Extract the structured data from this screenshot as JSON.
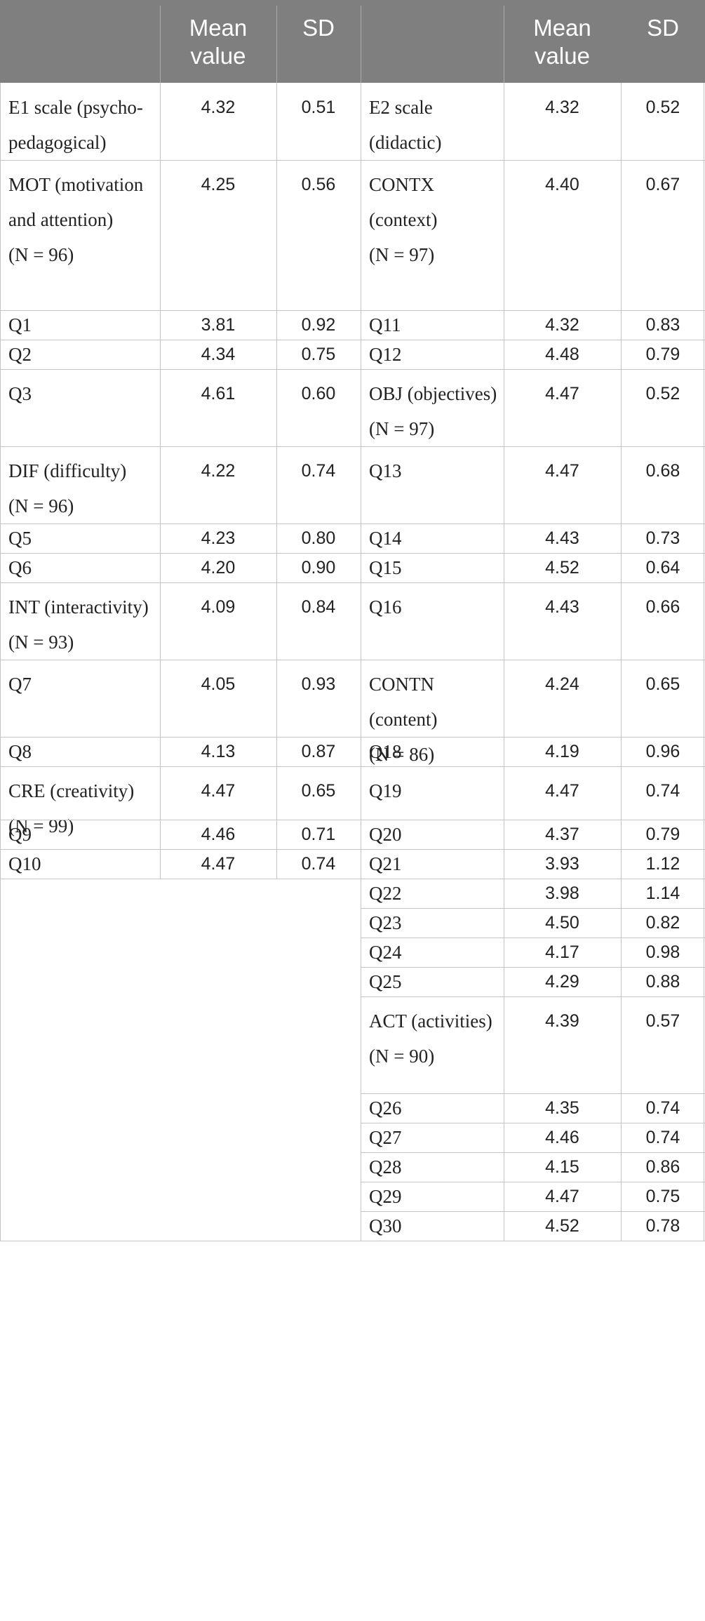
{
  "table": {
    "headers": [
      "",
      "Mean value",
      "SD",
      "",
      "Mean value",
      "SD"
    ],
    "left_rows": [
      {
        "label": "E1 scale (psycho-pedagogical)",
        "mean": "4.32",
        "sd": "0.51"
      },
      {
        "label": "MOT (motivation and attention)",
        "n": "(N = 96)",
        "mean": "4.25",
        "sd": "0.56"
      },
      {
        "label": "Q1",
        "mean": "3.81",
        "sd": "0.92"
      },
      {
        "label": "Q2",
        "mean": "4.34",
        "sd": "0.75"
      },
      {
        "label": "Q3",
        "mean": "4.61",
        "sd": "0.60"
      },
      {
        "label": "DIF (difficulty)",
        "n": "(N = 96)",
        "mean": "4.22",
        "sd": "0.74"
      },
      {
        "label": "Q5",
        "mean": "4.23",
        "sd": "0.80"
      },
      {
        "label": "Q6",
        "mean": "4.20",
        "sd": "0.90"
      },
      {
        "label": "INT (interactivity)",
        "n": "(N = 93)",
        "mean": "4.09",
        "sd": "0.84"
      },
      {
        "label": "Q7",
        "mean": "4.05",
        "sd": "0.93"
      },
      {
        "label": "Q8",
        "mean": "4.13",
        "sd": "0.87"
      },
      {
        "label": "CRE (creativity)",
        "n": "(N = 99)",
        "mean": "4.47",
        "sd": "0.65"
      },
      {
        "label": "Q9",
        "mean": "4.46",
        "sd": "0.71"
      },
      {
        "label": "Q10",
        "mean": "4.47",
        "sd": "0.74"
      }
    ],
    "right_rows": [
      {
        "label": "E2 scale (didactic)",
        "mean": "4.32",
        "sd": "0.52"
      },
      {
        "label": "CONTX (context)",
        "n": "(N = 97)",
        "mean": "4.40",
        "sd": "0.67"
      },
      {
        "label": "Q11",
        "mean": "4.32",
        "sd": "0.83"
      },
      {
        "label": "Q12",
        "mean": "4.48",
        "sd": "0.79"
      },
      {
        "label": "OBJ (objectives)",
        "n": "(N = 97)",
        "mean": "4.47",
        "sd": "0.52"
      },
      {
        "label": "Q13",
        "mean": "4.47",
        "sd": "0.68"
      },
      {
        "label": "Q14",
        "mean": "4.43",
        "sd": "0.73"
      },
      {
        "label": "Q15",
        "mean": "4.52",
        "sd": "0.64"
      },
      {
        "label": "Q16",
        "mean": "4.43",
        "sd": "0.66"
      },
      {
        "label": "CONTN (content)",
        "n": "(N = 86)",
        "mean": "4.24",
        "sd": "0.65"
      },
      {
        "label": "Q18",
        "mean": "4.19",
        "sd": "0.96"
      },
      {
        "label": "Q19",
        "mean": "4.47",
        "sd": "0.74"
      },
      {
        "label": "Q20",
        "mean": "4.37",
        "sd": "0.79"
      },
      {
        "label": "Q21",
        "mean": "3.93",
        "sd": "1.12"
      },
      {
        "label": "Q22",
        "mean": "3.98",
        "sd": "1.14"
      },
      {
        "label": "Q23",
        "mean": "4.50",
        "sd": "0.82"
      },
      {
        "label": "Q24",
        "mean": "4.17",
        "sd": "0.98"
      },
      {
        "label": "Q25",
        "mean": "4.29",
        "sd": "0.88"
      },
      {
        "label": "ACT (activities)",
        "n": "(N = 90)",
        "mean": "4.39",
        "sd": "0.57"
      },
      {
        "label": "Q26",
        "mean": "4.35",
        "sd": "0.74"
      },
      {
        "label": "Q27",
        "mean": "4.46",
        "sd": "0.74"
      },
      {
        "label": "Q28",
        "mean": "4.15",
        "sd": "0.86"
      },
      {
        "label": "Q29",
        "mean": "4.47",
        "sd": "0.75"
      },
      {
        "label": "Q30",
        "mean": "4.52",
        "sd": "0.78"
      }
    ]
  }
}
